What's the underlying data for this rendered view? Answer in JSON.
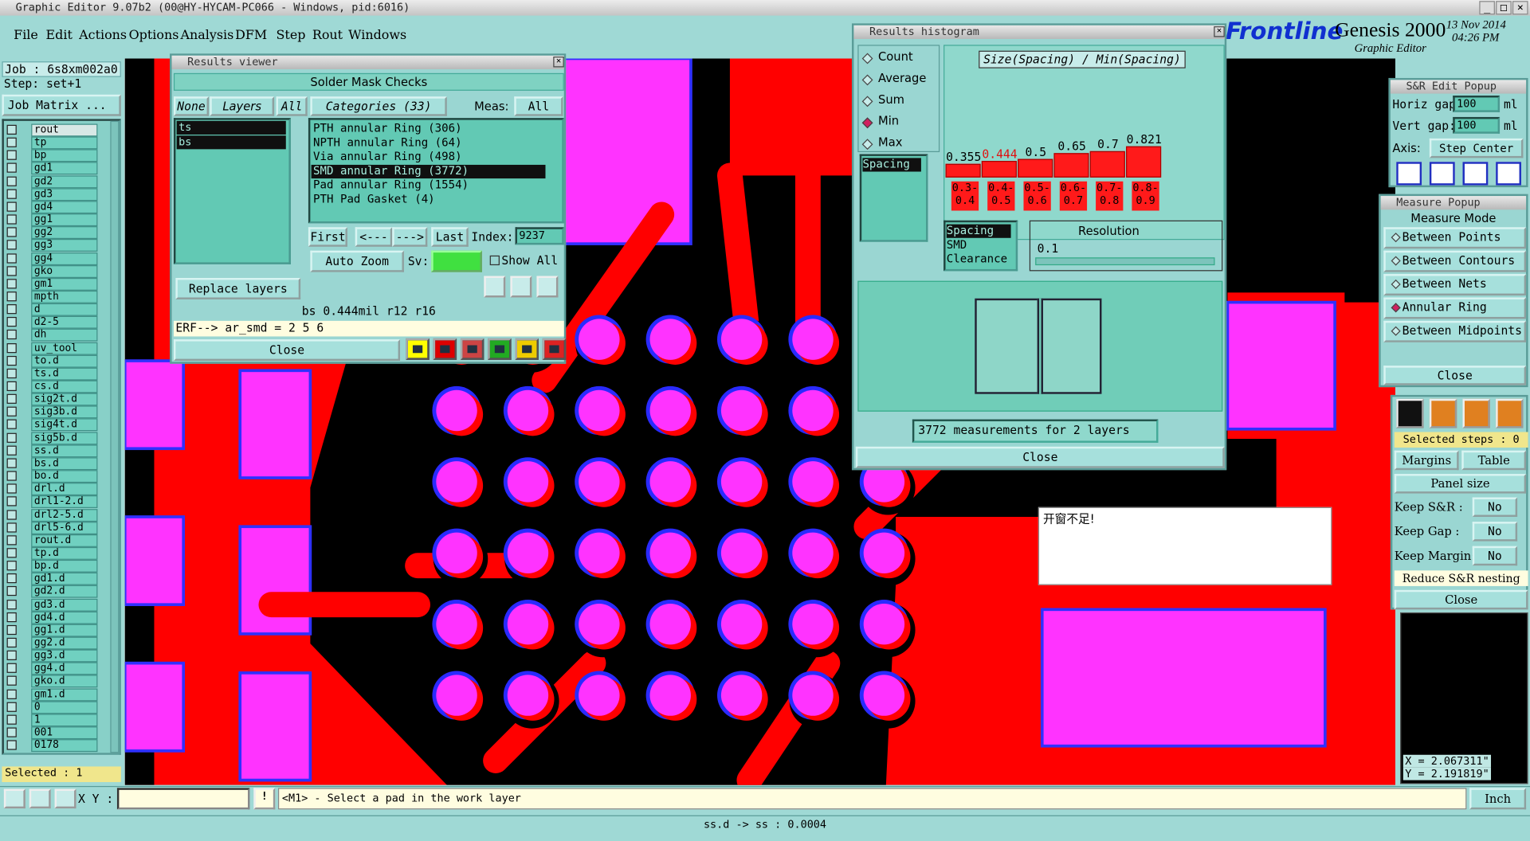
{
  "window_title": "Graphic Editor 9.07b2 (00@HY-HYCAM-PC066 - Windows, pid:6016)",
  "menu": [
    "File",
    "Edit",
    "Actions",
    "Options",
    "Analysis",
    "DFM",
    "Step",
    "Rout",
    "Windows"
  ],
  "brand": {
    "logo": "Frontline",
    "product": "Genesis 2000",
    "subtitle": "Graphic Editor",
    "date": "13 Nov 2014",
    "time": "04:26 PM"
  },
  "job": {
    "job": "Job : 6s8xm002a0",
    "step": "Step: set+1",
    "job_matrix": "Job Matrix ...",
    "selected": "Selected : 1",
    "layers": [
      "rout",
      "tp",
      "bp",
      "gd1",
      "gd2",
      "gd3",
      "gd4",
      "gg1",
      "gg2",
      "gg3",
      "gg4",
      "gko",
      "gm1",
      "mpth",
      "d",
      "d2-5",
      "dh",
      "uv_tool",
      "to.d",
      "ts.d",
      "cs.d",
      "sig2t.d",
      "sig3b.d",
      "sig4t.d",
      "sig5b.d",
      "ss.d",
      "bs.d",
      "bo.d",
      "drl.d",
      "drl1-2.d",
      "drl2-5.d",
      "drl5-6.d",
      "rout.d",
      "tp.d",
      "bp.d",
      "gd1.d",
      "gd2.d",
      "gd3.d",
      "gd4.d",
      "gg1.d",
      "gg2.d",
      "gg3.d",
      "gg4.d",
      "gko.d",
      "gm1.d",
      "0",
      "1",
      "001",
      "0178"
    ]
  },
  "results_viewer": {
    "title": "Results viewer",
    "header": "Solder Mask Checks",
    "buttons": [
      "None",
      "Layers",
      "All"
    ],
    "categories_label": "Categories (33)",
    "meas_label": "Meas:",
    "meas_value": "All",
    "layers": [
      "ts",
      "bs"
    ],
    "categories": [
      "PTH annular Ring (306)",
      "NPTH annular Ring (64)",
      "Via annular Ring (498)",
      "SMD annular Ring (3772)",
      "Pad annular Ring (1554)",
      "PTH Pad Gasket (4)"
    ],
    "selected_category": "SMD annular Ring (3772)",
    "nav": [
      "First",
      "<---",
      "--->",
      "Last"
    ],
    "index_label": "Index:",
    "index_value": "9237",
    "auto_zoom": "Auto Zoom",
    "sv_label": "Sv:",
    "show_all": "Show All",
    "replace_layers": "Replace layers",
    "status": "bs 0.444mil  r12  r16",
    "erf": "ERF--> ar_smd = 2 5 6",
    "close": "Close"
  },
  "histogram": {
    "title": "Results histogram",
    "options": [
      "Count",
      "Average",
      "Sum",
      "Min",
      "Max"
    ],
    "selected_option": "Min",
    "list": [
      "Spacing"
    ],
    "chart_title": "Size(Spacing) / Min(Spacing)",
    "values": [
      0.355,
      0.444,
      0.5,
      0.65,
      0.7,
      0.821
    ],
    "label_colors": [
      "#000000",
      "#e01010",
      "#000000",
      "#000000",
      "#000000",
      "#000000"
    ],
    "bins": [
      "0.3-0.4",
      "0.4-0.5",
      "0.5-0.6",
      "0.6-0.7",
      "0.7-0.8",
      "0.8-0.9"
    ],
    "list2": [
      "Spacing",
      "SMD",
      "Clearance"
    ],
    "resolution_label": "Resolution",
    "resolution_value": "0.1",
    "measurements": "3772 measurements for 2 layers",
    "close": "Close"
  },
  "sr_popup": {
    "title": "S&R Edit Popup",
    "horiz_label": "Horiz gap:",
    "horiz_value": "100",
    "vert_label": "Vert  gap:",
    "vert_value": "100",
    "unit": "ml",
    "axis_label": "Axis:",
    "axis_value": "Step Center"
  },
  "measure_popup": {
    "title": "Measure Popup",
    "mode": "Measure Mode",
    "options": [
      "Between Points",
      "Between Contours",
      "Between Nets",
      "Annular Ring",
      "Between Midpoints"
    ],
    "selected": "Annular Ring",
    "close": "Close"
  },
  "right_panel": {
    "selected_steps": "Selected steps : 0",
    "margins": "Margins",
    "table": "Table",
    "panel_size": "Panel size",
    "keeps": [
      {
        "label": "Keep S&R :",
        "value": "No"
      },
      {
        "label": "Keep Gap  :",
        "value": "No"
      },
      {
        "label": "Keep Margin:",
        "value": "No"
      }
    ],
    "reduce": "Reduce S&R nesting",
    "close": "Close",
    "coord_x": "X = 2.067311\"",
    "coord_y": "Y = 2.191819\""
  },
  "note": "开窗不足!",
  "bottom": {
    "xy_label": "X Y :",
    "prompt": "<M1> - Select a pad in the work layer",
    "units": "Inch",
    "status": "ss.d -> ss : 0.0004"
  }
}
